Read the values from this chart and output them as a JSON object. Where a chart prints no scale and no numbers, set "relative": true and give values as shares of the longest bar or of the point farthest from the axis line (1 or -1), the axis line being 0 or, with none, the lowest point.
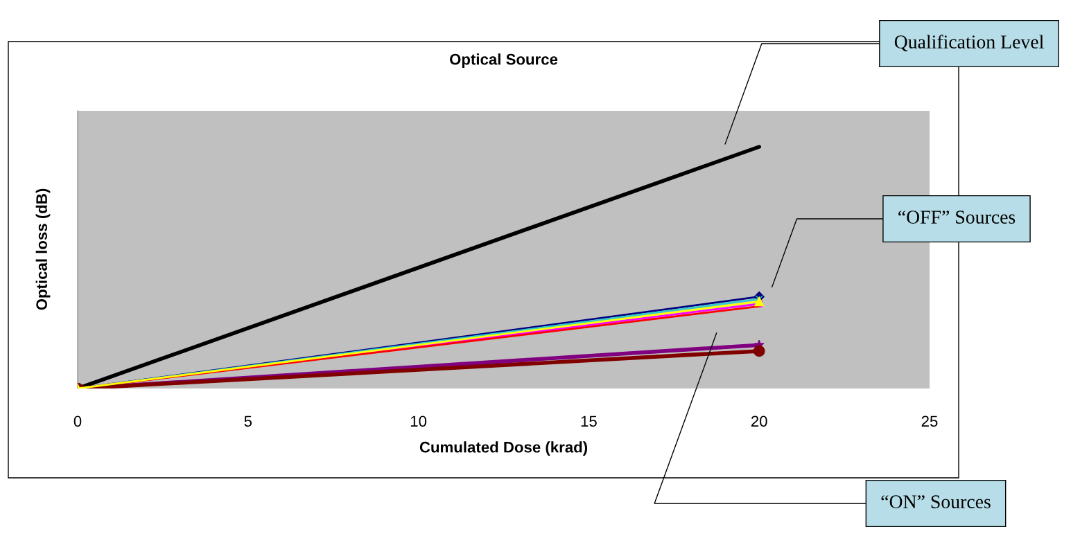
{
  "chart_data": {
    "type": "line",
    "title": "Optical Source",
    "xlabel": "Cumulated Dose (krad)",
    "ylabel": "Optical loss (dB)",
    "relative": true,
    "xlim": [
      0,
      25
    ],
    "xticks": [
      0,
      5,
      10,
      15,
      20,
      25
    ],
    "grid": false,
    "legend": false,
    "x": [
      0,
      20
    ],
    "series": [
      {
        "color": "#000000",
        "values": [
          0,
          1
        ],
        "marker": "none"
      },
      {
        "color": "#000080",
        "values": [
          0,
          0.38
        ],
        "marker": "diamond"
      },
      {
        "color": "#33cccc",
        "values": [
          0,
          0.37
        ],
        "marker": "cross"
      },
      {
        "color": "#ffff00",
        "values": [
          0,
          0.36
        ],
        "marker": "triangle"
      },
      {
        "color": "#ff00ff",
        "values": [
          0,
          0.35
        ],
        "marker": "square"
      },
      {
        "color": "#ff0000",
        "values": [
          0,
          0.34
        ],
        "marker": "none"
      },
      {
        "color": "#800080",
        "values": [
          0,
          0.18
        ],
        "marker": "star"
      },
      {
        "color": "#800000",
        "values": [
          0,
          0.155
        ],
        "marker": "circle"
      }
    ],
    "annotations": [
      "Qualification Level",
      "“OFF” Sources",
      "“ON” Sources"
    ]
  }
}
